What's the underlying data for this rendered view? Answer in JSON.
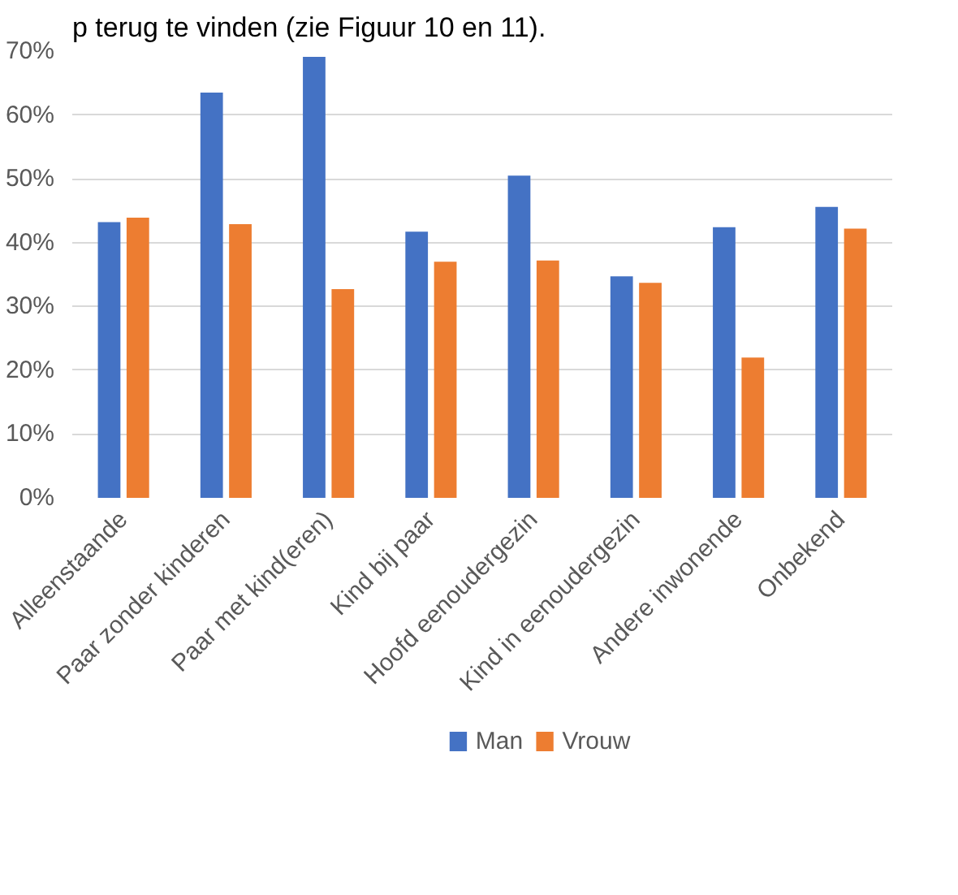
{
  "chart_data": {
    "type": "bar",
    "annotations": [
      "p terug te vinden (zie Figuur 10 en 11)."
    ],
    "categories": [
      "Alleenstaande",
      "Paar zonder kinderen",
      "Paar met kind(eren)",
      "Kind bij paar",
      "Hoofd eenoudergezin",
      "Kind in eenoudergezin",
      "Andere inwonende",
      "Onbekend"
    ],
    "series": [
      {
        "name": "Man",
        "color": "#4472c4",
        "values": [
          43.2,
          63.5,
          69.1,
          41.7,
          50.5,
          34.7,
          42.4,
          45.6
        ]
      },
      {
        "name": "Vrouw",
        "color": "#ed7d31",
        "values": [
          43.9,
          42.9,
          32.7,
          37.0,
          37.2,
          33.7,
          22.0,
          42.2
        ]
      }
    ],
    "ylim": [
      0,
      70
    ],
    "yticks": [
      {
        "value": 0,
        "label": "0%"
      },
      {
        "value": 10,
        "label": "10%"
      },
      {
        "value": 20,
        "label": "20%"
      },
      {
        "value": 30,
        "label": "30%"
      },
      {
        "value": 40,
        "label": "40%"
      },
      {
        "value": 50,
        "label": "50%"
      },
      {
        "value": 60,
        "label": "60%"
      },
      {
        "value": 70,
        "label": "70%"
      }
    ],
    "grid": "y",
    "legend": "bottom"
  }
}
